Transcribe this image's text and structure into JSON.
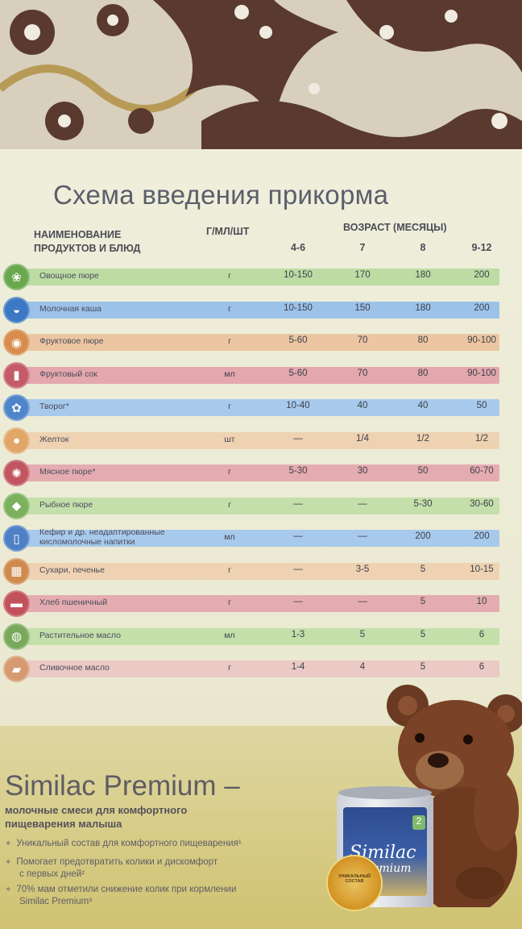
{
  "title": "Схема введения прикорма",
  "headers": {
    "name": "НАИМЕНОВАНИЕ ПРОДУКТОВ И БЛЮД",
    "name_line1": "НАИМЕНОВАНИЕ",
    "name_line2": "ПРОДУКТОВ И БЛЮД",
    "unit": "Г/МЛ/ШТ",
    "age": "ВОЗРАСТ (МЕСЯЦЫ)",
    "ages": [
      "4-6",
      "7",
      "8",
      "9-12"
    ]
  },
  "rows": [
    {
      "name": "Овощное пюре",
      "unit": "г",
      "values": [
        "10-150",
        "170",
        "180",
        "200"
      ],
      "icon": "vegetable-icon",
      "color": "#bcdca4"
    },
    {
      "name": "Молочная каша",
      "unit": "г",
      "values": [
        "10-150",
        "150",
        "180",
        "200"
      ],
      "icon": "porridge-bowl-icon",
      "color": "#9cc2ea"
    },
    {
      "name": "Фруктовое пюре",
      "unit": "г",
      "values": [
        "5-60",
        "70",
        "80",
        "90-100"
      ],
      "icon": "fruit-puree-icon",
      "color": "#ecc6a2"
    },
    {
      "name": "Фруктовый сок",
      "unit": "мл",
      "values": [
        "5-60",
        "70",
        "80",
        "90-100"
      ],
      "icon": "juice-glass-icon",
      "color": "#e3a7ad"
    },
    {
      "name": "Творог*",
      "unit": "г",
      "values": [
        "10-40",
        "40",
        "40",
        "50"
      ],
      "icon": "cottage-cheese-icon",
      "color": "#a7c9ec"
    },
    {
      "name": "Желток",
      "unit": "шт",
      "values": [
        "—",
        "1/4",
        "1/2",
        "1/2"
      ],
      "icon": "egg-yolk-icon",
      "color": "#eed2b2"
    },
    {
      "name": "Мясное пюре*",
      "unit": "г",
      "values": [
        "5-30",
        "30",
        "50",
        "60-70"
      ],
      "icon": "meat-icon",
      "color": "#e4acb0"
    },
    {
      "name": "Рыбное пюре",
      "unit": "г",
      "values": [
        "—",
        "—",
        "5-30",
        "30-60"
      ],
      "icon": "fish-icon",
      "color": "#c5dfab"
    },
    {
      "name": "Кефир и др. неадаптированные кисломолочные напитки",
      "line1": "Кефир и др. неадаптированные",
      "line2": "кисломолочные напитки",
      "unit": "мл",
      "values": [
        "—",
        "—",
        "200",
        "200"
      ],
      "icon": "kefir-carton-icon",
      "color": "#a7c9ec"
    },
    {
      "name": "Сухари, печенье",
      "unit": "г",
      "values": [
        "—",
        "3-5",
        "5",
        "10-15"
      ],
      "icon": "cracker-icon",
      "color": "#eed2b2"
    },
    {
      "name": "Хлеб пшеничный",
      "unit": "г",
      "values": [
        "—",
        "—",
        "5",
        "10"
      ],
      "icon": "bread-icon",
      "color": "#e4acb0"
    },
    {
      "name": "Растительное масло",
      "unit": "мл",
      "values": [
        "1-3",
        "5",
        "5",
        "6"
      ],
      "icon": "oil-drop-icon",
      "color": "#c5dfab"
    },
    {
      "name": "Сливочное масло",
      "unit": "г",
      "values": [
        "1-4",
        "4",
        "5",
        "6"
      ],
      "icon": "butter-icon",
      "color": "#ebc9c5"
    }
  ],
  "ad": {
    "title": "Similac Premium –",
    "subtitle_line1": "молочные смеси для комфортного",
    "subtitle_line2": "пищеварения малыша",
    "bullets": [
      {
        "line1": "Уникальный состав для комфортного пищеварения¹",
        "line2": ""
      },
      {
        "line1": "Помогает предотвратить колики и дискомфорт",
        "line2": "с первых дней²"
      },
      {
        "line1": "70% мам отметили снижение колик при кормлении",
        "line2": "Similac Premium³"
      }
    ],
    "can_brand": "Similac",
    "can_brand2": "Premium",
    "can_number": "2",
    "seal_text": "УНИКАЛЬНЫЙ СОСТАВ"
  }
}
